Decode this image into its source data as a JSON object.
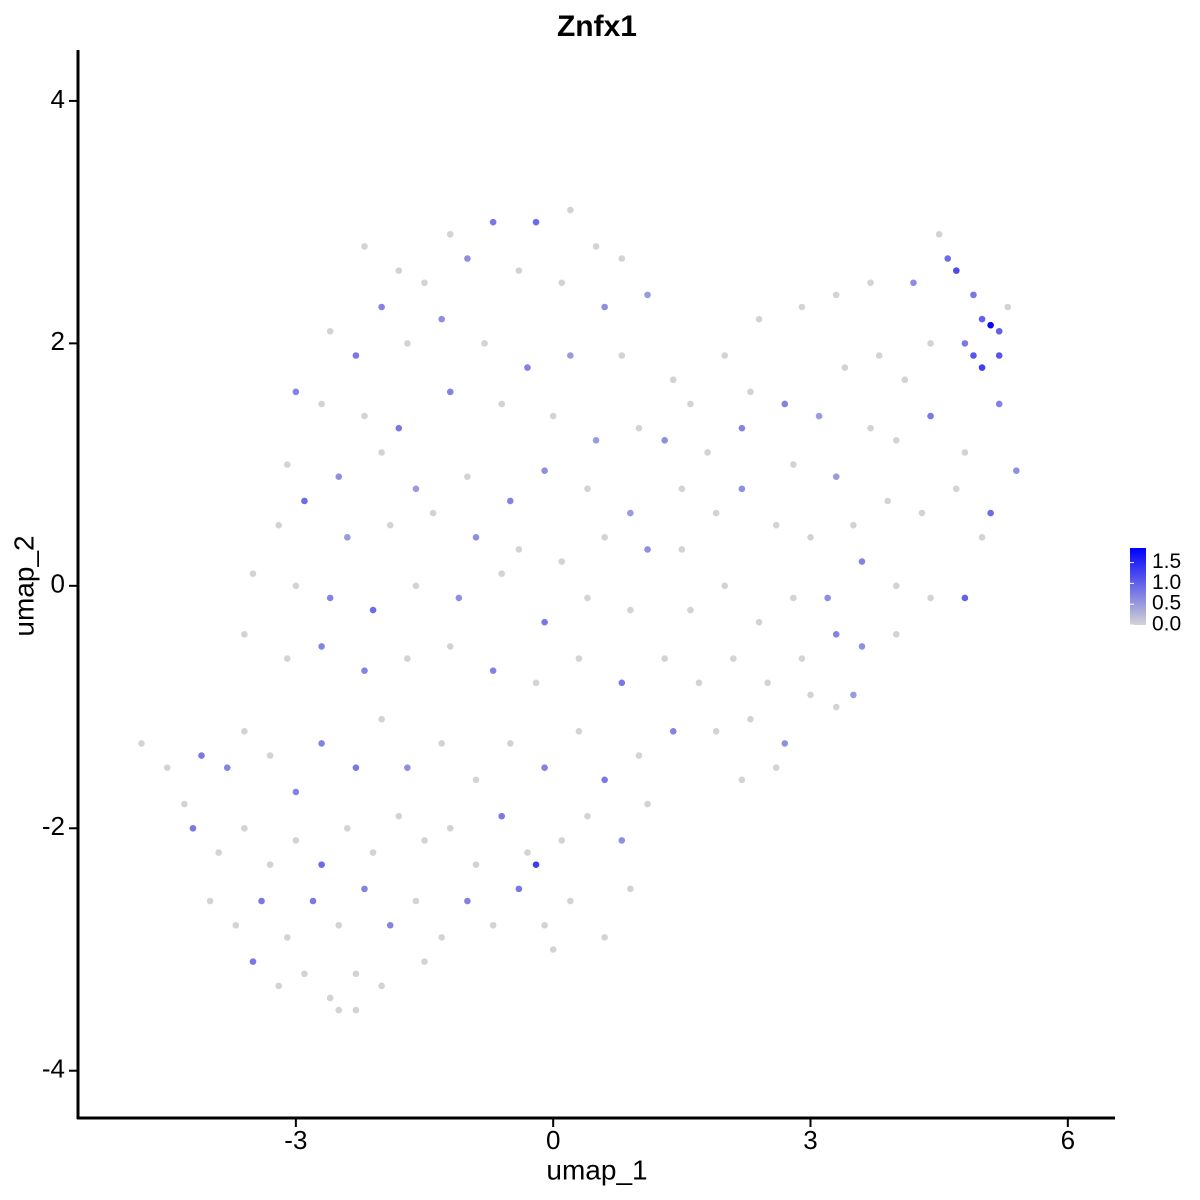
{
  "chart_data": {
    "type": "scatter",
    "title": "Znfx1",
    "xlabel": "umap_1",
    "ylabel": "umap_2",
    "xlim": [
      -5.54,
      6.55
    ],
    "ylim": [
      -4.39,
      4.42
    ],
    "xticks": [
      -3,
      0,
      3,
      6
    ],
    "yticks": [
      -4,
      -2,
      0,
      2,
      4
    ],
    "low_color": "#d3d3d3",
    "high_color": "#0000ff",
    "colorbar": {
      "lim": [
        0,
        1.85
      ],
      "ticks": [
        {
          "value": 0,
          "label": "0.0"
        },
        {
          "value": 0.5,
          "label": "0.5"
        },
        {
          "value": 1,
          "label": "1.0"
        },
        {
          "value": 1.5,
          "label": "1.5"
        }
      ]
    },
    "x": [
      -2.2,
      -1.8,
      -1.2,
      -0.7,
      -0.2,
      0.2,
      0.5,
      0.8,
      -2.0,
      -1.5,
      -1.0,
      -0.4,
      0.1,
      0.6,
      1.1,
      -2.6,
      -2.3,
      -1.7,
      -1.3,
      -0.8,
      -0.3,
      0.2,
      0.8,
      1.4,
      -3.0,
      -2.7,
      -2.2,
      -1.8,
      -1.2,
      -0.6,
      0.0,
      0.5,
      1.0,
      1.3,
      -3.1,
      -2.5,
      -2.0,
      -1.6,
      -1.0,
      -0.5,
      -0.1,
      0.4,
      0.9,
      1.5,
      -3.2,
      -2.9,
      -2.4,
      -1.9,
      -1.4,
      -0.9,
      -0.4,
      0.1,
      0.6,
      1.1,
      -3.5,
      -3.0,
      -2.6,
      -2.1,
      -1.6,
      -1.1,
      -0.6,
      -0.1,
      0.4,
      0.9,
      -3.6,
      -3.1,
      -2.7,
      -2.2,
      -1.7,
      -1.2,
      -0.7,
      -0.2,
      0.3,
      0.8,
      1.3,
      1.6,
      2.0,
      2.3,
      2.7,
      3.1,
      3.4,
      3.8,
      4.1,
      4.4,
      1.8,
      2.2,
      2.8,
      3.3,
      3.7,
      4.0,
      4.4,
      4.8,
      2.4,
      2.9,
      3.3,
      3.7,
      4.2,
      4.6,
      4.5,
      4.7,
      4.9,
      5.0,
      5.1,
      5.2,
      4.9,
      5.0,
      5.2,
      4.8,
      5.3,
      5.2,
      5.4,
      1.5,
      1.9,
      2.2,
      2.6,
      3.0,
      3.5,
      3.9,
      4.3,
      4.7,
      5.1,
      1.6,
      2.0,
      2.4,
      2.8,
      3.2,
      3.6,
      4.0,
      4.4,
      4.8,
      5.0,
      1.7,
      2.1,
      2.5,
      2.9,
      3.3,
      3.6,
      4.0,
      1.9,
      2.3,
      2.7,
      3.0,
      3.3,
      3.5,
      2.6,
      2.2,
      -4.8,
      -4.5,
      -4.3,
      -4.1,
      -3.8,
      -3.6,
      -3.3,
      -3.0,
      -2.7,
      -2.3,
      -2.0,
      -1.7,
      -1.3,
      -0.9,
      -0.5,
      -0.1,
      0.3,
      0.6,
      1.0,
      1.4,
      -4.2,
      -3.9,
      -3.6,
      -3.3,
      -3.0,
      -2.7,
      -2.4,
      -2.1,
      -1.8,
      -1.5,
      -1.2,
      -0.9,
      -0.6,
      -0.3,
      0.1,
      0.4,
      0.8,
      1.1,
      -4.0,
      -3.7,
      -3.4,
      -3.1,
      -2.8,
      -2.5,
      -2.2,
      -1.9,
      -1.6,
      -1.3,
      -1.0,
      -0.7,
      -0.4,
      -0.1,
      0.2,
      0.6,
      0.9,
      -3.5,
      -3.2,
      -2.9,
      -2.6,
      -2.3,
      -2.0,
      -1.5,
      -2.5,
      -2.3,
      0.0,
      -0.2
    ],
    "y": [
      2.8,
      2.6,
      2.9,
      3.0,
      3.0,
      3.1,
      2.8,
      2.7,
      2.3,
      2.5,
      2.7,
      2.6,
      2.5,
      2.3,
      2.4,
      2.1,
      1.9,
      2.0,
      2.2,
      2.0,
      1.8,
      1.9,
      1.9,
      1.7,
      1.6,
      1.5,
      1.4,
      1.3,
      1.6,
      1.5,
      1.4,
      1.2,
      1.3,
      1.2,
      1.0,
      0.9,
      1.1,
      0.8,
      0.9,
      0.7,
      0.95,
      0.8,
      0.6,
      0.8,
      0.5,
      0.7,
      0.4,
      0.5,
      0.6,
      0.4,
      0.3,
      0.2,
      0.4,
      0.3,
      0.1,
      0.0,
      -0.1,
      -0.2,
      0.0,
      -0.1,
      0.1,
      -0.3,
      -0.1,
      -0.2,
      -0.4,
      -0.6,
      -0.5,
      -0.7,
      -0.6,
      -0.5,
      -0.7,
      -0.8,
      -0.6,
      -0.8,
      -0.6,
      1.5,
      1.9,
      1.6,
      1.5,
      1.4,
      1.8,
      1.9,
      1.7,
      2.0,
      1.1,
      1.3,
      1.0,
      0.9,
      1.3,
      1.2,
      1.4,
      1.1,
      2.2,
      2.3,
      2.4,
      2.5,
      2.5,
      2.7,
      2.9,
      2.6,
      2.4,
      2.2,
      2.15,
      2.1,
      1.9,
      1.8,
      1.9,
      2.0,
      2.3,
      1.5,
      0.95,
      0.3,
      0.6,
      0.8,
      0.5,
      0.4,
      0.5,
      0.7,
      0.6,
      0.8,
      0.6,
      -0.2,
      0.0,
      -0.3,
      -0.1,
      -0.1,
      0.2,
      0.0,
      -0.1,
      -0.1,
      0.4,
      -0.8,
      -0.6,
      -0.8,
      -0.6,
      -0.4,
      -0.5,
      -0.4,
      -1.2,
      -1.1,
      -1.3,
      -0.9,
      -1.0,
      -0.9,
      -1.5,
      -1.6,
      -1.3,
      -1.5,
      -1.8,
      -1.4,
      -1.5,
      -1.2,
      -1.4,
      -1.7,
      -1.3,
      -1.5,
      -1.1,
      -1.5,
      -1.3,
      -1.6,
      -1.3,
      -1.5,
      -1.2,
      -1.6,
      -1.4,
      -1.2,
      -2.0,
      -2.2,
      -2.0,
      -2.3,
      -2.1,
      -2.3,
      -2.0,
      -2.2,
      -1.9,
      -2.1,
      -2.0,
      -2.3,
      -1.9,
      -2.2,
      -2.1,
      -1.9,
      -2.1,
      -1.8,
      -2.6,
      -2.8,
      -2.6,
      -2.9,
      -2.6,
      -2.8,
      -2.5,
      -2.8,
      -2.6,
      -2.9,
      -2.6,
      -2.8,
      -2.5,
      -2.8,
      -2.6,
      -2.9,
      -2.5,
      -3.1,
      -3.3,
      -3.2,
      -3.4,
      -3.2,
      -3.3,
      -3.1,
      -3.5,
      -3.5,
      -3.0,
      -2.3
    ],
    "values": [
      0,
      0,
      0,
      0.8,
      0.9,
      0,
      0,
      0,
      0.7,
      0,
      0.6,
      0,
      0,
      0.6,
      0.5,
      0,
      0.8,
      0,
      0.6,
      0,
      0.7,
      0.5,
      0,
      0,
      0.7,
      0,
      0,
      0.8,
      0.7,
      0,
      0,
      0.5,
      0,
      0.6,
      0,
      0.6,
      0,
      0.5,
      0,
      0.7,
      0.6,
      0,
      0.5,
      0,
      0,
      0.9,
      0.5,
      0,
      0,
      0.6,
      0,
      0,
      0,
      0.6,
      0,
      0,
      0.7,
      0.9,
      0,
      0.6,
      0,
      0.8,
      0,
      0,
      0,
      0,
      0.7,
      0.7,
      0,
      0,
      0.7,
      0,
      0,
      0.8,
      0,
      0,
      0,
      0,
      0.7,
      0.5,
      0,
      0,
      0,
      0,
      0,
      0.7,
      0,
      0.5,
      0,
      0,
      0.8,
      0,
      0,
      0,
      0,
      0,
      0.6,
      0.9,
      0,
      1.2,
      0.8,
      1.0,
      1.8,
      1.0,
      1.1,
      1.3,
      1.1,
      0.8,
      0,
      0.7,
      0.6,
      0,
      0,
      0.6,
      0,
      0,
      0,
      0,
      0,
      0,
      0.9,
      0,
      0,
      0,
      0,
      0.6,
      0.7,
      0,
      0,
      1.0,
      0,
      0,
      0,
      0,
      0,
      0.7,
      0.6,
      0,
      0,
      0,
      0.6,
      0,
      0,
      0.5,
      0,
      0,
      0,
      0,
      0,
      0.8,
      0.7,
      0,
      0,
      0.7,
      0.7,
      0.8,
      0,
      0.6,
      0,
      0,
      0,
      0.7,
      0,
      0.8,
      0,
      0.7,
      0.8,
      0,
      0,
      0,
      0,
      0.9,
      0,
      0,
      0,
      0,
      0,
      0,
      0.8,
      0,
      0,
      0,
      0.6,
      0,
      0,
      0,
      0.8,
      0,
      0.8,
      0,
      0.7,
      0.7,
      0,
      0,
      0.7,
      0,
      0.8,
      0,
      0,
      0,
      0,
      0.8,
      0,
      0,
      0,
      0,
      0,
      0,
      0,
      0,
      0,
      1.3
    ]
  }
}
